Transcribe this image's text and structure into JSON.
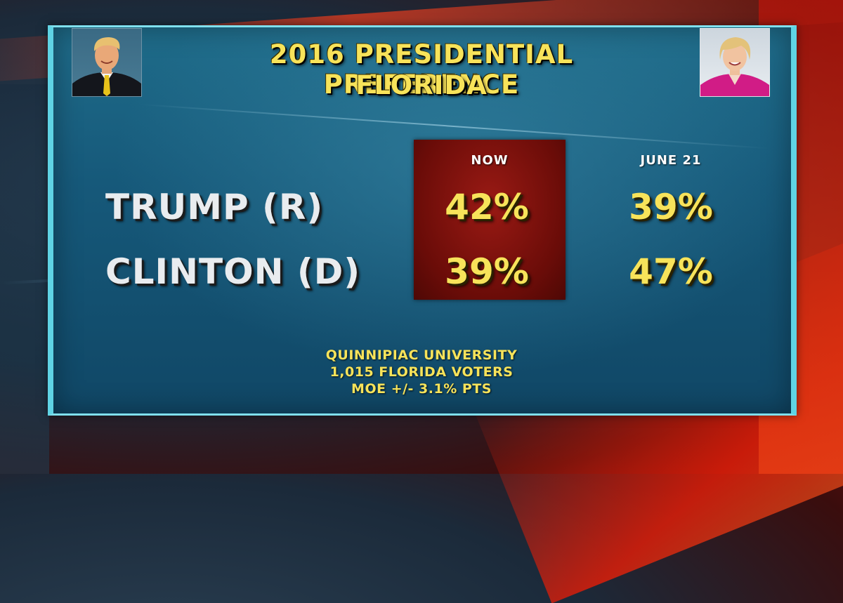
{
  "header": {
    "title_line1": "2016 PRESIDENTIAL PREFERENCE",
    "title_line2": "FLORIDA"
  },
  "columns": [
    "NOW",
    "JUNE 21"
  ],
  "rows": [
    {
      "label": "TRUMP (R)",
      "now": "42%",
      "june21": "39%"
    },
    {
      "label": "CLINTON (D)",
      "now": "39%",
      "june21": "47%"
    }
  ],
  "source": {
    "line1": "QUINNIPIAC UNIVERSITY",
    "line2": "1,015 FLORIDA VOTERS",
    "line3": "MOE +/- 3.1% PTS"
  },
  "colors": {
    "accent_yellow": "#f7e35a",
    "now_highlight": "#7a0f0a",
    "panel_border": "#5fd3e4"
  },
  "chart_data": {
    "type": "table",
    "title": "2016 PRESIDENTIAL PREFERENCE FLORIDA",
    "columns": [
      "NOW",
      "JUNE 21"
    ],
    "series": [
      {
        "name": "TRUMP (R)",
        "values": [
          42,
          39
        ]
      },
      {
        "name": "CLINTON (D)",
        "values": [
          39,
          47
        ]
      }
    ],
    "units": "%",
    "highlighted_column": "NOW"
  }
}
